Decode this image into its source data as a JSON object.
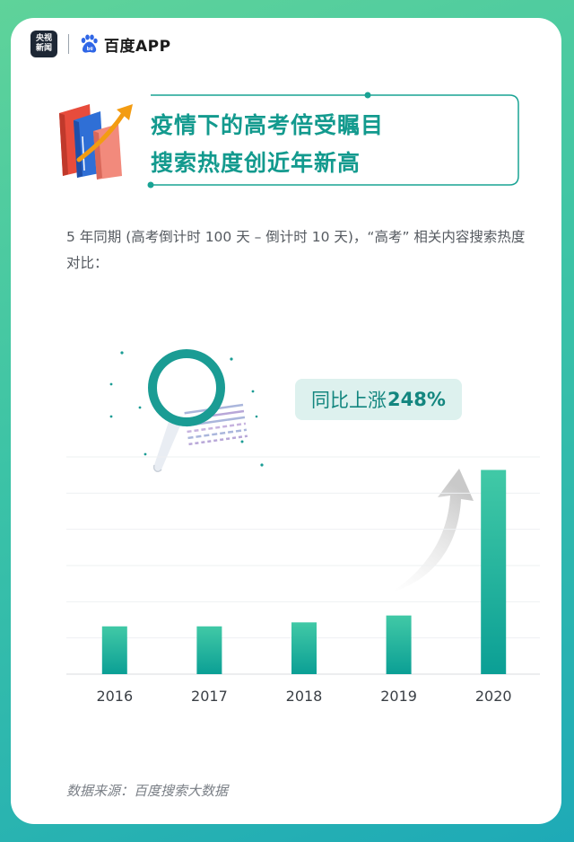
{
  "header": {
    "cctv_logo_line1": "央视",
    "cctv_logo_line2": "新闻",
    "baidu_app_label": "百度APP"
  },
  "headline": {
    "line1": "疫情下的高考倍受瞩目",
    "line2": "搜索热度创近年新高"
  },
  "description": "5 年同期 (高考倒计时 100 天 – 倒计时 10 天)，“高考” 相关内容搜索热度对比：",
  "callout": {
    "prefix": "同比上涨",
    "value": "248%"
  },
  "source": "数据来源：百度搜索大数据",
  "colors": {
    "accent": "#139a8e",
    "bar_top": "#41c9a6",
    "bar_bottom": "#0b9f95",
    "card_bg": "#ffffff"
  },
  "chart_data": {
    "type": "bar",
    "categories": [
      "2016",
      "2017",
      "2018",
      "2019",
      "2020"
    ],
    "values": [
      1.32,
      1.32,
      1.43,
      1.62,
      5.64
    ],
    "ylim": [
      0,
      6
    ],
    "grid": true,
    "title": "",
    "xlabel": "",
    "ylabel": "",
    "annotation": "同比上涨248%"
  }
}
